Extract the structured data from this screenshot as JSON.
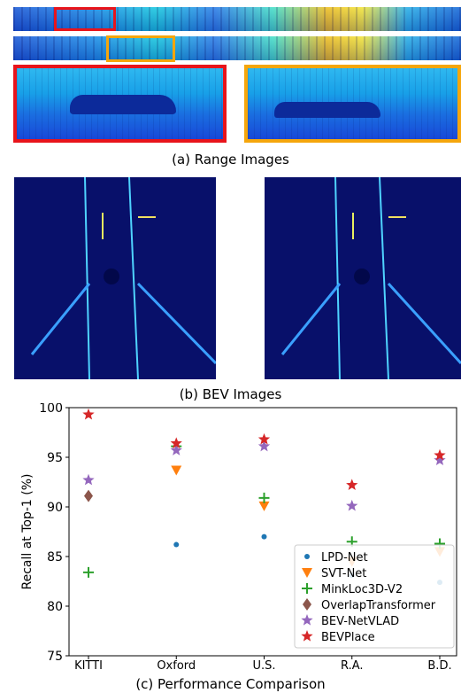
{
  "captions": {
    "range": "(a) Range Images",
    "bev": "(b) BEV Images",
    "perf": "(c) Performance Comparison"
  },
  "colors": {
    "red_box": "#e8141b",
    "yellow_box": "#f5a60c",
    "bev_bg": "#08106a"
  },
  "chart_data": {
    "type": "scatter",
    "title": "",
    "xlabel": "",
    "ylabel": "Recall at Top-1 (%)",
    "categories": [
      "KITTI",
      "Oxford",
      "U.S.",
      "R.A.",
      "B.D."
    ],
    "ylim": [
      75,
      100
    ],
    "yticks": [
      75,
      80,
      85,
      90,
      95,
      100
    ],
    "grid": false,
    "legend_position": "bottom-right",
    "series": [
      {
        "name": "LPD-Net",
        "marker": "circle",
        "color": "#1f77b4",
        "values": [
          null,
          86.2,
          87.0,
          83.1,
          82.4
        ]
      },
      {
        "name": "SVT-Net",
        "marker": "triangle-down",
        "color": "#ff7f0e",
        "values": [
          null,
          93.7,
          90.1,
          84.5,
          85.5
        ]
      },
      {
        "name": "MinkLoc3D-V2",
        "marker": "plus",
        "color": "#2ca02c",
        "values": [
          83.4,
          96.1,
          90.9,
          86.5,
          86.3
        ]
      },
      {
        "name": "OverlapTransformer",
        "marker": "diamond",
        "color": "#8c564b",
        "values": [
          91.1,
          null,
          null,
          null,
          null
        ]
      },
      {
        "name": "BEV-NetVLAD",
        "marker": "star",
        "color": "#9467bd",
        "values": [
          92.7,
          95.7,
          96.1,
          90.1,
          94.7
        ]
      },
      {
        "name": "BEVPlace",
        "marker": "star",
        "color": "#d62728",
        "values": [
          99.3,
          96.4,
          96.8,
          92.2,
          95.2
        ]
      }
    ]
  }
}
